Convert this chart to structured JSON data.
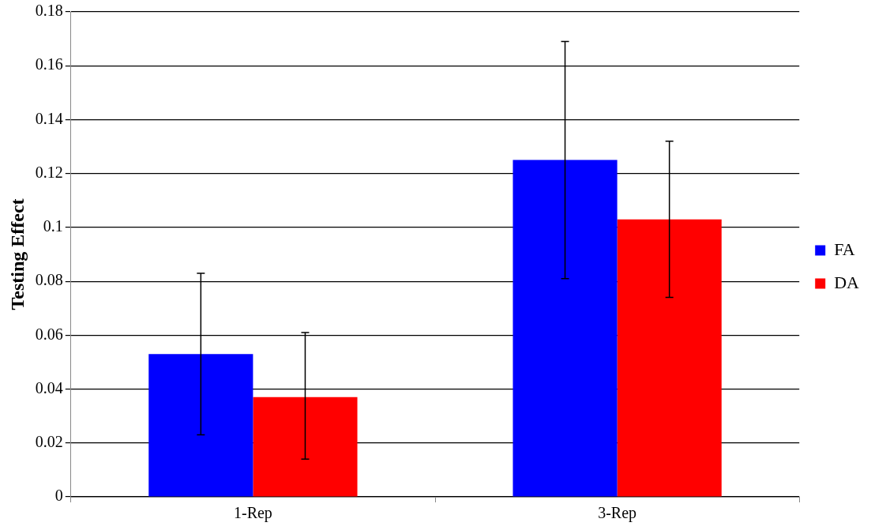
{
  "chart_data": {
    "type": "bar",
    "ylabel": "Testing Effect",
    "categories": [
      "1-Rep",
      "3-Rep"
    ],
    "series": [
      {
        "name": "FA",
        "color": "#0000ff",
        "values": [
          0.053,
          0.125
        ],
        "errors": [
          [
            0.023,
            0.083
          ],
          [
            0.081,
            0.169
          ]
        ]
      },
      {
        "name": "DA",
        "color": "#ff0000",
        "values": [
          0.037,
          0.103
        ],
        "errors": [
          [
            0.014,
            0.061
          ],
          [
            0.074,
            0.132
          ]
        ]
      }
    ],
    "ylim": [
      0,
      0.18
    ],
    "yticks": [
      0,
      0.02,
      0.04,
      0.06,
      0.08,
      0.1,
      0.12,
      0.14,
      0.16,
      0.18
    ],
    "grid": "y",
    "legend": "right"
  }
}
